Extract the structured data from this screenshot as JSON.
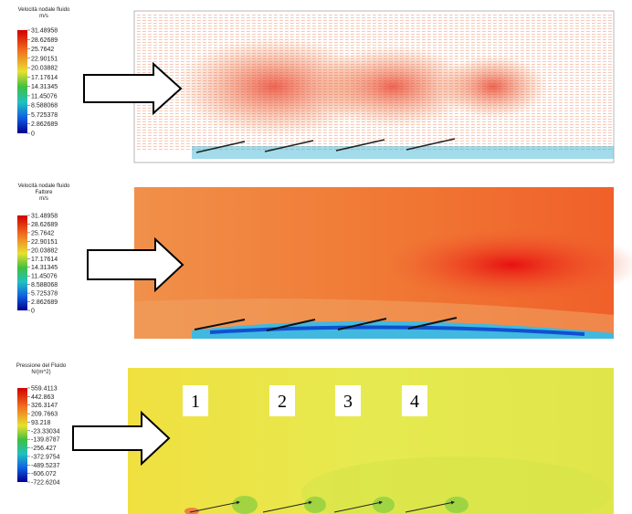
{
  "panels": [
    {
      "legend": {
        "title": [
          "Velocità nodale fluido",
          "m/s"
        ],
        "labels": [
          "31.48958",
          "28.62689",
          "25.7642",
          "22.90151",
          "20.03882",
          "17.17614",
          "14.31345",
          "11.45076",
          "8.588068",
          "5.725378",
          "2.862689",
          "0"
        ]
      }
    },
    {
      "legend": {
        "title": [
          "Velocità nodale fluido",
          "Fattore",
          "m/s"
        ],
        "labels": [
          "31.48958",
          "28.62689",
          "25.7642",
          "22.90151",
          "20.03882",
          "17.17614",
          "14.31345",
          "11.45076",
          "8.588068",
          "5.725378",
          "2.862689",
          "0"
        ]
      }
    },
    {
      "legend": {
        "title": [
          "Pressione del Fluido",
          "N/(m^2)"
        ],
        "labels": [
          "559.4113",
          "442.863",
          "326.3147",
          "209.7663",
          "93.218",
          "-23.33034",
          "-139.8787",
          "-256.427",
          "-372.9754",
          "-489.5237",
          "-606.072",
          "-722.6204"
        ]
      },
      "markers": [
        "1",
        "2",
        "3",
        "4"
      ]
    }
  ]
}
